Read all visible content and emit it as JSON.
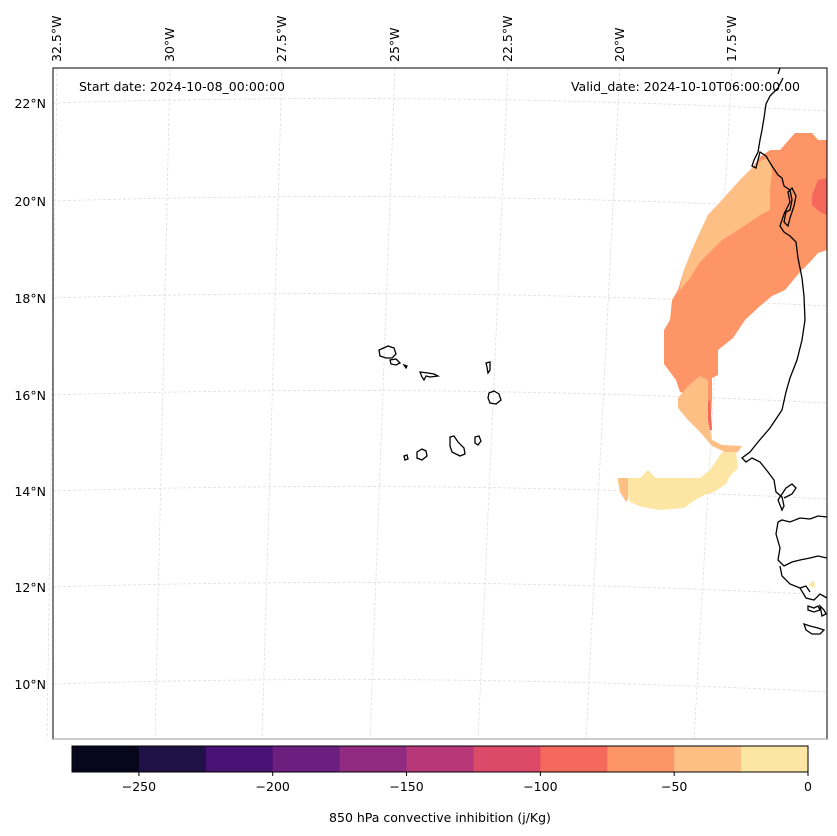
{
  "chart_data": {
    "type": "heatmap",
    "map_projection": "polar stereographic / lambert-like (curved graticule)",
    "annotations": {
      "start_date": "Start date: 2024-10-08_00:00:00",
      "valid_date": "Valid_date: 2024-10-10T06:00:00.00"
    },
    "longitude_ticks": [
      "32.5°W",
      "30°W",
      "27.5°W",
      "25°W",
      "22.5°W",
      "20°W",
      "17.5°W"
    ],
    "latitude_ticks": [
      "22°N",
      "20°N",
      "18°N",
      "16°N",
      "14°N",
      "12°N",
      "10°N"
    ],
    "lon_range": [
      -32.6,
      -16.2
    ],
    "lat_range": [
      8.9,
      22.8
    ],
    "grid": true,
    "colorbar": {
      "label": "850 hPa convective inhibition (j/Kg)",
      "orientation": "horizontal",
      "placement": "bottom",
      "range": [
        -275,
        0
      ],
      "levels": [
        -275,
        -250,
        -225,
        -200,
        -175,
        -150,
        -125,
        -100,
        -75,
        -50,
        -25,
        0
      ],
      "tick_values": [
        -250,
        -200,
        -150,
        -100,
        -50,
        0
      ],
      "tick_labels": [
        "−250",
        "−200",
        "−150",
        "−100",
        "−50",
        "0"
      ],
      "colors": [
        "#07061c",
        "#1f1146",
        "#4a1175",
        "#6d1f80",
        "#912b81",
        "#b73779",
        "#dc4a6a",
        "#f5695c",
        "#fd9567",
        "#febf84",
        "#fde6a4"
      ]
    },
    "regions": [
      {
        "name": "cin-band-north",
        "range": [
          -75,
          -50
        ],
        "location": "Mauritania coast and offshore, ~16.5–21.5°N"
      },
      {
        "name": "cin-band-north-core",
        "range": [
          -100,
          -75
        ],
        "location": "inland Mauritania edge ~19.5–20°N"
      },
      {
        "name": "cin-band-west",
        "range": [
          -50,
          -25
        ],
        "location": "offshore western edge ~17–20.5°N and ~15–16°N"
      },
      {
        "name": "cin-band-south",
        "range": [
          -25,
          0
        ],
        "location": "offshore Senegal ~13.8–14.8°N"
      }
    ],
    "features": [
      "Cape Verde islands",
      "West African coastline (Mauritania, Senegal, Gambia, Guinea-Bissau)"
    ]
  }
}
